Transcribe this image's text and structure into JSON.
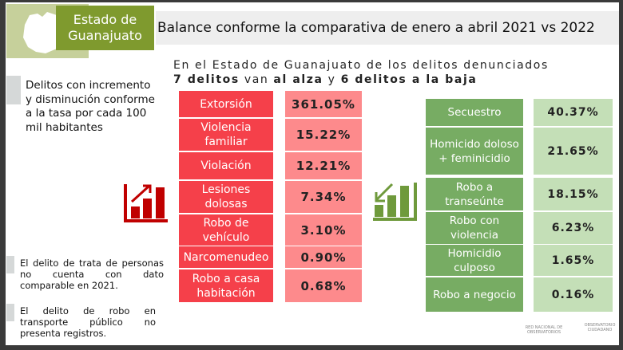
{
  "header": {
    "state": "Estado de Guanajuato",
    "title": "Balance conforme la comparativa de enero a abril 2021 vs 2022"
  },
  "subtitle": {
    "line1": "En el Estado de Guanajuato de los delitos denunciados",
    "n_up": "7 delitos",
    "mid1": " van ",
    "al_alza": "al alza",
    "mid2": " y ",
    "n_down": "6 delitos",
    "a_la_baja": " a la baja"
  },
  "sidebar": {
    "description": "Delitos con incremento y disminución conforme a la tasa por cada 100 mil habitantes",
    "note1": "El delito de trata de personas no cuenta con dato comparable en 2021.",
    "note2": "El delito de robo en transporte público no presenta registros."
  },
  "increases": [
    {
      "name": "Extorsión",
      "value": "361.05%"
    },
    {
      "name": "Violencia familiar",
      "value": "15.22%"
    },
    {
      "name": "Violación",
      "value": "12.21%"
    },
    {
      "name": "Lesiones dolosas",
      "value": "7.34%"
    },
    {
      "name": "Robo de vehículo",
      "value": "3.10%"
    },
    {
      "name": "Narcomenudeo",
      "value": "0.90%"
    },
    {
      "name": "Robo a casa habitación",
      "value": "0.68%"
    }
  ],
  "decreases": [
    {
      "name": "Secuestro",
      "value": "40.37%"
    },
    {
      "name": "Homicido doloso + feminicidio",
      "value": "21.65%"
    },
    {
      "name": "Robo a transeúnte",
      "value": "18.15%"
    },
    {
      "name": "Robo con violencia",
      "value": "6.23%"
    },
    {
      "name": "Homicidio culposo",
      "value": "1.65%"
    },
    {
      "name": "Robo a negocio",
      "value": "0.16%"
    }
  ],
  "logos": {
    "red": "RED NACIONAL DE OBSERVATORIOS",
    "obs": "OBSERVATORIO CIUDADANO"
  },
  "colors": {
    "up": "#f5404a",
    "down": "#77ac63",
    "brand": "#7f9a2e"
  }
}
